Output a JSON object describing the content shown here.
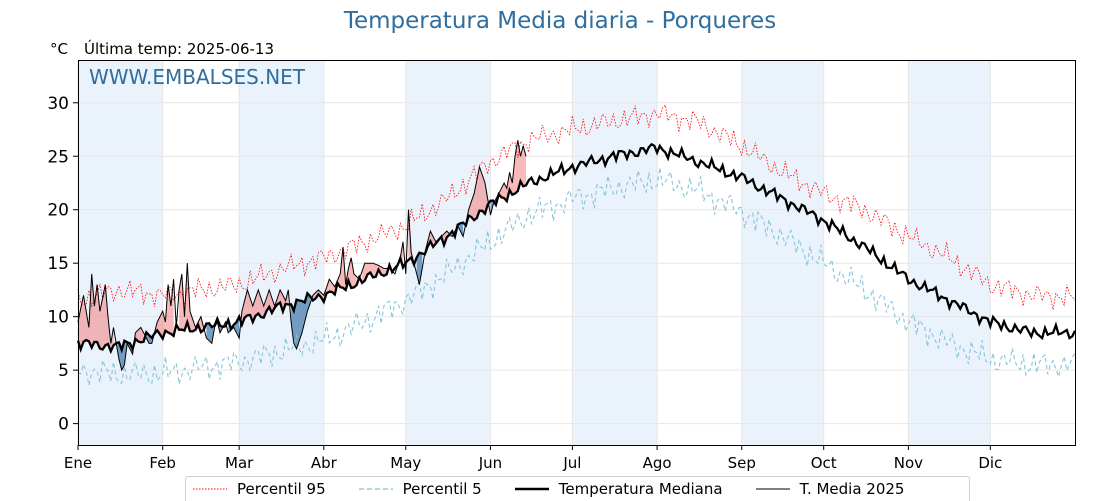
{
  "header": {
    "title": "Temperatura Media diaria - Porqueres",
    "unit": "°C",
    "last_temp": "Última temp: 2025-06-13",
    "watermark": "WWW.EMBALSES.NET"
  },
  "colors": {
    "p95": "#ff0000",
    "p5": "#87c4d9",
    "median": "#000000",
    "media2025": "#000000",
    "above_fill": "#f08080",
    "below_fill": "#4a7fb0",
    "month_band": "#eaf3fb",
    "title": "#2f6e9e"
  },
  "chart_data": {
    "type": "line",
    "x_axis": {
      "ticks": [
        "Ene",
        "Feb",
        "Mar",
        "Abr",
        "May",
        "Jun",
        "Jul",
        "Ago",
        "Sep",
        "Oct",
        "Nov",
        "Dic"
      ],
      "range_days": [
        0,
        365
      ]
    },
    "y_axis": {
      "ticks": [
        "0",
        "5",
        "10",
        "15",
        "20",
        "25",
        "30"
      ],
      "range": [
        -2,
        34
      ]
    },
    "grid": true,
    "legend_position": "bottom",
    "series": [
      {
        "name": "Percentil 95",
        "style": "dotted",
        "knots": [
          [
            0,
            11.5
          ],
          [
            15,
            12.5
          ],
          [
            31,
            12.0
          ],
          [
            45,
            12.5
          ],
          [
            59,
            13.0
          ],
          [
            75,
            14.5
          ],
          [
            90,
            15.5
          ],
          [
            105,
            17.0
          ],
          [
            120,
            18.5
          ],
          [
            135,
            21.0
          ],
          [
            151,
            24.5
          ],
          [
            165,
            26.5
          ],
          [
            181,
            27.5
          ],
          [
            196,
            28.3
          ],
          [
            212,
            29.0
          ],
          [
            227,
            28.2
          ],
          [
            243,
            26.0
          ],
          [
            258,
            23.5
          ],
          [
            273,
            21.5
          ],
          [
            288,
            20.0
          ],
          [
            304,
            17.5
          ],
          [
            319,
            15.5
          ],
          [
            334,
            13.0
          ],
          [
            349,
            12.0
          ],
          [
            365,
            11.8
          ]
        ],
        "amplitude": 1.1
      },
      {
        "name": "Percentil 5",
        "style": "dashed",
        "knots": [
          [
            0,
            5.0
          ],
          [
            15,
            4.6
          ],
          [
            31,
            4.7
          ],
          [
            45,
            5.2
          ],
          [
            59,
            5.8
          ],
          [
            75,
            6.8
          ],
          [
            90,
            7.8
          ],
          [
            105,
            9.5
          ],
          [
            120,
            11.5
          ],
          [
            135,
            14.0
          ],
          [
            151,
            17.0
          ],
          [
            165,
            19.5
          ],
          [
            181,
            21.0
          ],
          [
            196,
            22.0
          ],
          [
            212,
            22.8
          ],
          [
            227,
            21.8
          ],
          [
            243,
            19.8
          ],
          [
            258,
            17.5
          ],
          [
            273,
            15.0
          ],
          [
            288,
            12.5
          ],
          [
            304,
            9.5
          ],
          [
            319,
            7.5
          ],
          [
            334,
            6.0
          ],
          [
            349,
            5.5
          ],
          [
            365,
            5.5
          ]
        ],
        "amplitude": 1.3
      },
      {
        "name": "Temperatura Mediana",
        "style": "thick",
        "knots": [
          [
            0,
            7.5
          ],
          [
            15,
            7.2
          ],
          [
            31,
            8.5
          ],
          [
            45,
            9.0
          ],
          [
            59,
            9.5
          ],
          [
            75,
            11.0
          ],
          [
            90,
            12.0
          ],
          [
            105,
            13.5
          ],
          [
            120,
            15.0
          ],
          [
            135,
            17.5
          ],
          [
            151,
            20.5
          ],
          [
            165,
            22.5
          ],
          [
            181,
            24.0
          ],
          [
            196,
            25.0
          ],
          [
            212,
            25.8
          ],
          [
            227,
            24.5
          ],
          [
            243,
            23.0
          ],
          [
            258,
            21.0
          ],
          [
            273,
            19.0
          ],
          [
            288,
            16.5
          ],
          [
            304,
            13.5
          ],
          [
            319,
            11.5
          ],
          [
            334,
            9.5
          ],
          [
            349,
            8.5
          ],
          [
            365,
            8.5
          ]
        ],
        "amplitude": 0.6
      },
      {
        "name": "T. Media 2025",
        "style": "thin",
        "points": [
          [
            0,
            9.5
          ],
          [
            2,
            12.0
          ],
          [
            4,
            9.0
          ],
          [
            5,
            14.0
          ],
          [
            6,
            11.0
          ],
          [
            7,
            13.0
          ],
          [
            8,
            10.5
          ],
          [
            10,
            13.0
          ],
          [
            11,
            10.0
          ],
          [
            12,
            7.5
          ],
          [
            13,
            9.0
          ],
          [
            14,
            7.5
          ],
          [
            15,
            6.0
          ],
          [
            16,
            5.0
          ],
          [
            17,
            5.5
          ],
          [
            18,
            7.5
          ],
          [
            20,
            6.5
          ],
          [
            21,
            8.5
          ],
          [
            23,
            9.0
          ],
          [
            25,
            8.0
          ],
          [
            26,
            7.5
          ],
          [
            27,
            7.5
          ],
          [
            28,
            8.5
          ],
          [
            29,
            9.5
          ],
          [
            31,
            10.5
          ],
          [
            32,
            9.5
          ],
          [
            33,
            13.0
          ],
          [
            34,
            11.0
          ],
          [
            35,
            13.5
          ],
          [
            36,
            9.0
          ],
          [
            37,
            12.5
          ],
          [
            38,
            14.0
          ],
          [
            39,
            10.0
          ],
          [
            40,
            15.0
          ],
          [
            41,
            10.5
          ],
          [
            43,
            9.0
          ],
          [
            45,
            10.0
          ],
          [
            47,
            8.0
          ],
          [
            49,
            7.5
          ],
          [
            50,
            9.0
          ],
          [
            51,
            9.5
          ],
          [
            52,
            8.5
          ],
          [
            54,
            9.5
          ],
          [
            55,
            8.5
          ],
          [
            57,
            9.0
          ],
          [
            59,
            8.0
          ],
          [
            60,
            10.5
          ],
          [
            62,
            12.5
          ],
          [
            64,
            11.0
          ],
          [
            66,
            12.5
          ],
          [
            68,
            11.0
          ],
          [
            70,
            12.5
          ],
          [
            72,
            11.0
          ],
          [
            74,
            12.5
          ],
          [
            76,
            11.5
          ],
          [
            77,
            12.5
          ],
          [
            78,
            9.5
          ],
          [
            79,
            7.5
          ],
          [
            80,
            7.0
          ],
          [
            82,
            8.5
          ],
          [
            84,
            10.5
          ],
          [
            86,
            12.0
          ],
          [
            88,
            12.5
          ],
          [
            90,
            12.0
          ],
          [
            92,
            13.5
          ],
          [
            94,
            12.8
          ],
          [
            96,
            14.0
          ],
          [
            97,
            16.5
          ],
          [
            98,
            13.0
          ],
          [
            99,
            14.5
          ],
          [
            100,
            15.5
          ],
          [
            101,
            14.0
          ],
          [
            103,
            13.5
          ],
          [
            105,
            15.0
          ],
          [
            108,
            15.0
          ],
          [
            110,
            14.8
          ],
          [
            112,
            14.5
          ],
          [
            114,
            14.5
          ],
          [
            116,
            14.0
          ],
          [
            118,
            15.5
          ],
          [
            119,
            17.0
          ],
          [
            120,
            14.0
          ],
          [
            121,
            20.0
          ],
          [
            122,
            16.0
          ],
          [
            123,
            15.0
          ],
          [
            125,
            13.0
          ],
          [
            127,
            16.0
          ],
          [
            129,
            18.0
          ],
          [
            131,
            17.0
          ],
          [
            133,
            17.5
          ],
          [
            135,
            18.0
          ],
          [
            137,
            17.5
          ],
          [
            139,
            18.5
          ],
          [
            141,
            17.5
          ],
          [
            143,
            20.0
          ],
          [
            145,
            21.5
          ],
          [
            147,
            24.0
          ],
          [
            149,
            22.5
          ],
          [
            151,
            19.5
          ],
          [
            152,
            20.5
          ],
          [
            153,
            21.0
          ],
          [
            155,
            22.0
          ],
          [
            156,
            22.5
          ],
          [
            157,
            22.0
          ],
          [
            158,
            23.5
          ],
          [
            159,
            22.5
          ],
          [
            160,
            25.0
          ],
          [
            161,
            26.5
          ],
          [
            162,
            25.0
          ],
          [
            163,
            26.0
          ],
          [
            164,
            25.0
          ]
        ]
      }
    ]
  },
  "legend": {
    "items": [
      "Percentil 95",
      "Percentil 5",
      "Temperatura Mediana",
      "T. Media 2025"
    ]
  }
}
